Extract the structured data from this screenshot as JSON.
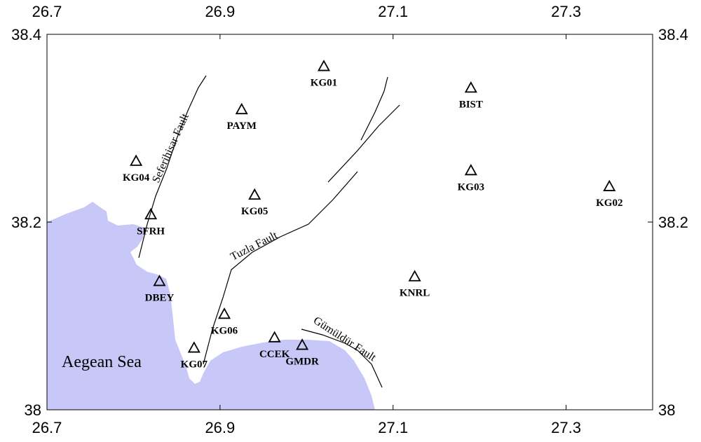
{
  "map": {
    "x_ticks": [
      {
        "value": 26.7,
        "label": "26.7"
      },
      {
        "value": 26.9,
        "label": "26.9"
      },
      {
        "value": 27.1,
        "label": "27.1"
      },
      {
        "value": 27.3,
        "label": "27.3"
      }
    ],
    "y_ticks": [
      {
        "value": 38.4,
        "label": "38.4"
      },
      {
        "value": 38.2,
        "label": "38.2"
      },
      {
        "value": 38.0,
        "label": "38"
      }
    ],
    "xlim": [
      26.7,
      27.4
    ],
    "ylim": [
      38.0,
      38.4
    ],
    "sea_color": "#c8c8f8",
    "sea_label": "Aegean Sea",
    "faults": [
      {
        "name": "Seferihisar Fault"
      },
      {
        "name": "Tuzla Fault"
      },
      {
        "name": "Gümüldür Fault"
      }
    ],
    "stations": [
      {
        "label": "KG01",
        "lon": 27.02,
        "lat": 38.366
      },
      {
        "label": "BIST",
        "lon": 27.19,
        "lat": 38.343
      },
      {
        "label": "PAYM",
        "lon": 26.925,
        "lat": 38.32
      },
      {
        "label": "KG04",
        "lon": 26.803,
        "lat": 38.265
      },
      {
        "label": "KG03",
        "lon": 27.19,
        "lat": 38.255
      },
      {
        "label": "KG02",
        "lon": 27.35,
        "lat": 38.238
      },
      {
        "label": "KG05",
        "lon": 26.94,
        "lat": 38.229
      },
      {
        "label": "SFRH",
        "lon": 26.82,
        "lat": 38.208
      },
      {
        "label": "KNRL",
        "lon": 27.125,
        "lat": 38.142
      },
      {
        "label": "DBEY",
        "lon": 26.83,
        "lat": 38.137
      },
      {
        "label": "KG06",
        "lon": 26.905,
        "lat": 38.102
      },
      {
        "label": "CCEK",
        "lon": 26.963,
        "lat": 38.077
      },
      {
        "label": "GMDR",
        "lon": 26.995,
        "lat": 38.069
      },
      {
        "label": "KG07",
        "lon": 26.87,
        "lat": 38.066
      }
    ]
  }
}
